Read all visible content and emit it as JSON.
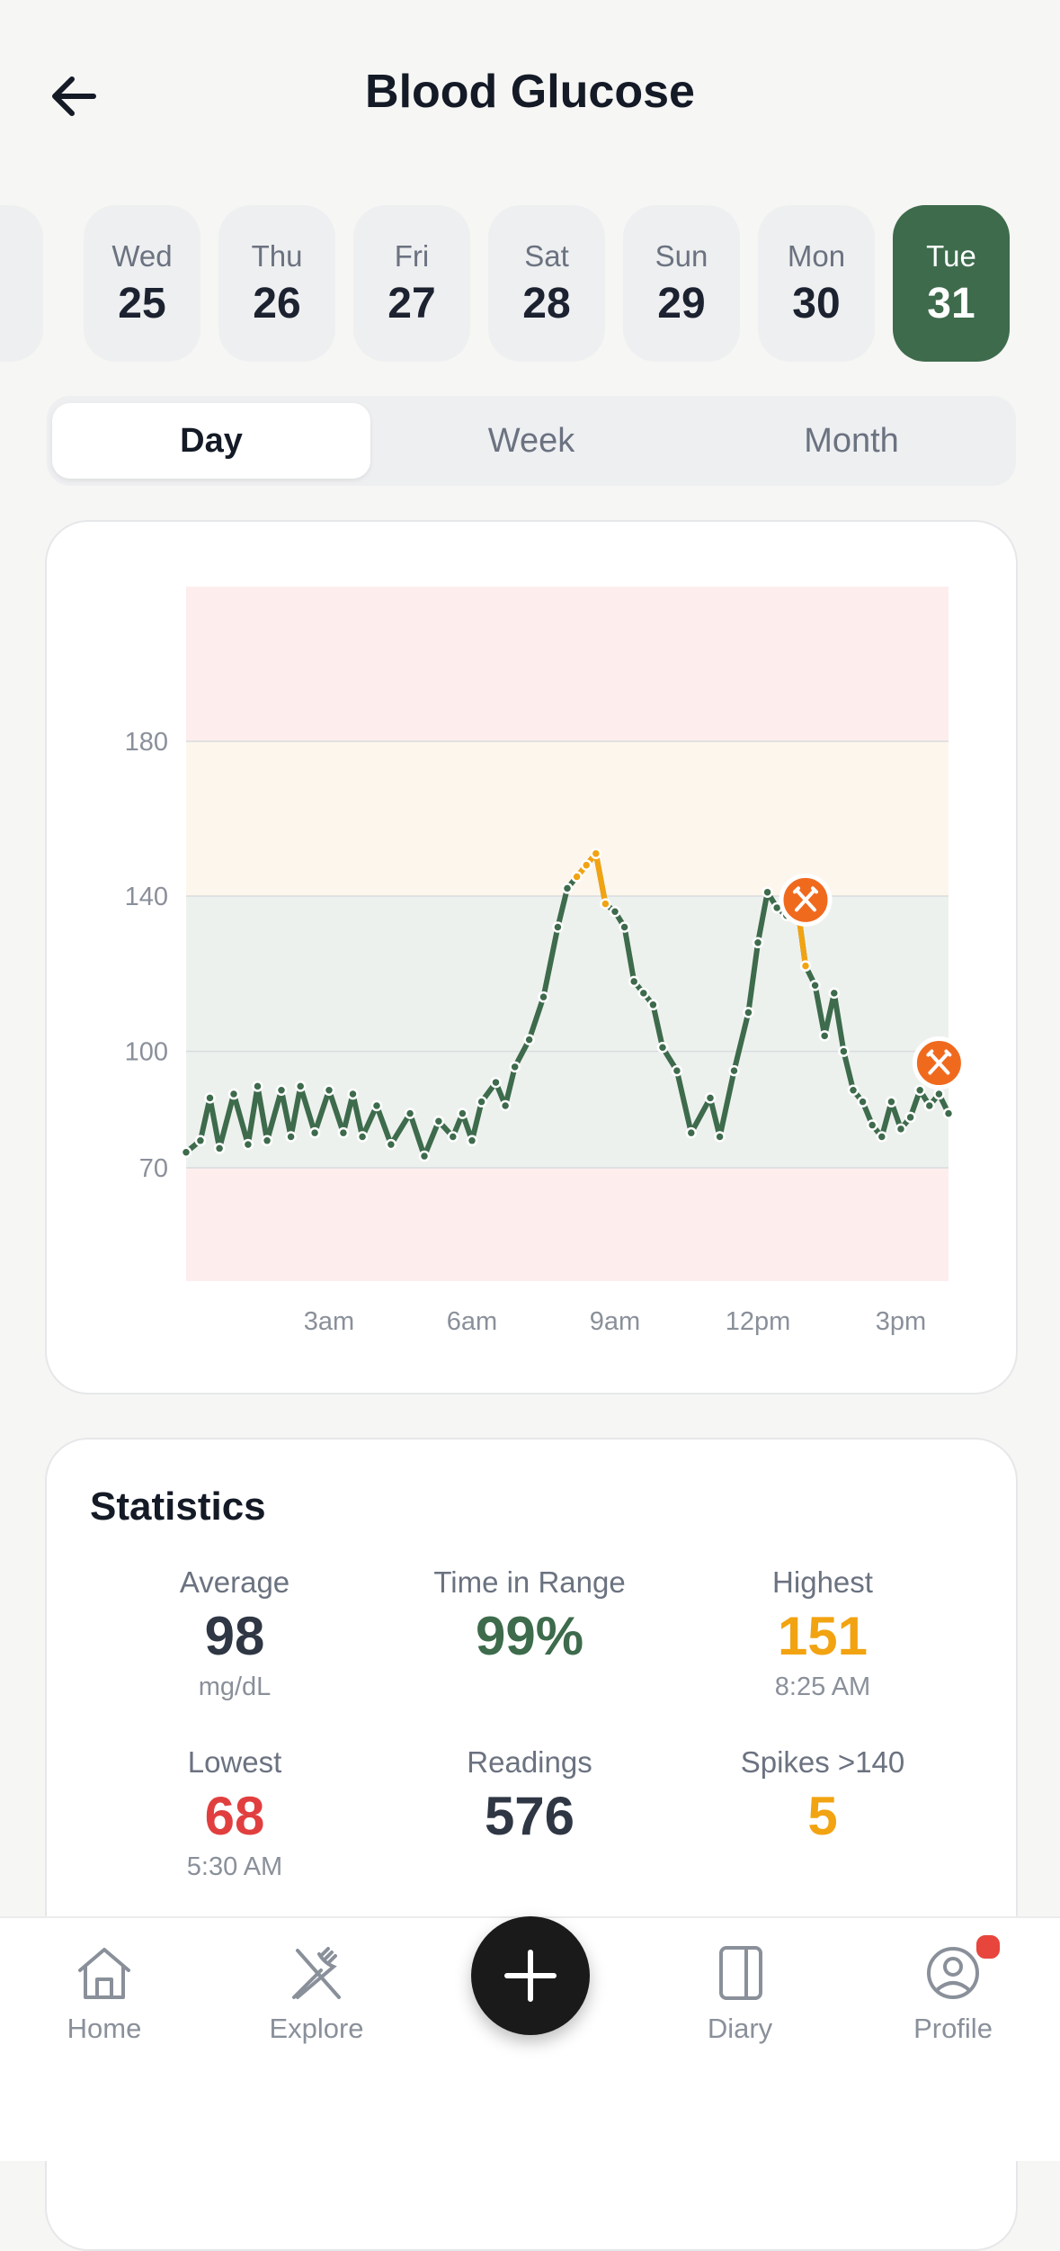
{
  "header": {
    "title": "Blood Glucose"
  },
  "dates": [
    {
      "day": "Wed",
      "date": "25"
    },
    {
      "day": "Thu",
      "date": "26"
    },
    {
      "day": "Fri",
      "date": "27"
    },
    {
      "day": "Sat",
      "date": "28"
    },
    {
      "day": "Sun",
      "date": "29"
    },
    {
      "day": "Mon",
      "date": "30"
    },
    {
      "day": "Tue",
      "date": "31",
      "active": true
    }
  ],
  "tabs": [
    {
      "label": "Day",
      "active": true
    },
    {
      "label": "Week"
    },
    {
      "label": "Month"
    }
  ],
  "chart_data": {
    "type": "line",
    "y_ticks": [
      "180",
      "140",
      "100",
      "70"
    ],
    "x_ticks": [
      "3am",
      "6am",
      "9am",
      "12pm",
      "3pm"
    ],
    "x_tick_hours": [
      3,
      6,
      9,
      12,
      15
    ],
    "xlim_hours": [
      0,
      16
    ],
    "ylim": [
      40,
      220
    ],
    "bands": [
      {
        "from": 40,
        "to": 70,
        "color": "#fdeeed"
      },
      {
        "from": 70,
        "to": 140,
        "color": "#edf1ee"
      },
      {
        "from": 140,
        "to": 180,
        "color": "#fdf6ec"
      },
      {
        "from": 180,
        "to": 220,
        "color": "#fdeeed"
      }
    ],
    "series": [
      {
        "color": "#3d6b4c",
        "highlight_color": "#f2a311",
        "x": [
          0.0,
          0.3,
          0.5,
          0.7,
          1.0,
          1.3,
          1.5,
          1.7,
          2.0,
          2.2,
          2.4,
          2.7,
          3.0,
          3.3,
          3.5,
          3.7,
          4.0,
          4.3,
          4.7,
          5.0,
          5.3,
          5.6,
          5.8,
          6.0,
          6.2,
          6.5,
          6.7,
          6.9,
          7.2,
          7.5,
          7.8,
          8.0,
          8.2,
          8.4,
          8.6,
          8.8,
          9.0,
          9.2,
          9.4,
          9.6,
          9.8,
          10.0,
          10.3,
          10.6,
          11.0,
          11.2,
          11.5,
          11.8,
          12.0,
          12.2,
          12.4,
          12.6,
          12.8,
          13.0,
          13.2,
          13.4,
          13.6,
          13.8,
          14.0,
          14.2,
          14.4,
          14.6,
          14.8,
          15.0,
          15.2,
          15.4,
          15.6,
          15.8,
          16.0
        ],
        "y": [
          74,
          77,
          88,
          75,
          89,
          76,
          91,
          77,
          90,
          78,
          91,
          79,
          90,
          79,
          89,
          78,
          86,
          76,
          84,
          73,
          82,
          78,
          84,
          77,
          87,
          92,
          86,
          96,
          103,
          114,
          132,
          142,
          145,
          148,
          151,
          138,
          136,
          132,
          118,
          115,
          112,
          101,
          95,
          79,
          88,
          78,
          95,
          110,
          128,
          141,
          137,
          135,
          140,
          122,
          117,
          104,
          115,
          100,
          90,
          87,
          81,
          78,
          87,
          80,
          83,
          90,
          86,
          89,
          84
        ],
        "highlight_ranges": [
          [
            32,
            35
          ],
          [
            52,
            53
          ]
        ]
      }
    ],
    "meal_marker_times": [
      13.0,
      15.8
    ],
    "meal_marker_values": [
      139,
      97
    ]
  },
  "stats": {
    "title": "Statistics",
    "average": {
      "label": "Average",
      "value": "98",
      "sub": "mg/dL"
    },
    "time_in_range": {
      "label": "Time in Range",
      "value": "99%"
    },
    "highest": {
      "label": "Highest",
      "value": "151",
      "sub": "8:25 AM"
    },
    "lowest": {
      "label": "Lowest",
      "value": "68",
      "sub": "5:30 AM"
    },
    "readings": {
      "label": "Readings",
      "value": "576"
    },
    "spikes": {
      "label": "Spikes >140",
      "value": "5"
    }
  },
  "nav": [
    {
      "label": "Home",
      "icon": "home-icon"
    },
    {
      "label": "Explore",
      "icon": "fork-knife-icon"
    },
    {
      "label": "Diary",
      "icon": "book-icon"
    },
    {
      "label": "Profile",
      "icon": "user-circle-icon"
    }
  ],
  "colors": {
    "accent": "#3d6b4c",
    "warning": "#f2a311",
    "danger": "#e13f3f",
    "marker": "#f06a1e"
  }
}
